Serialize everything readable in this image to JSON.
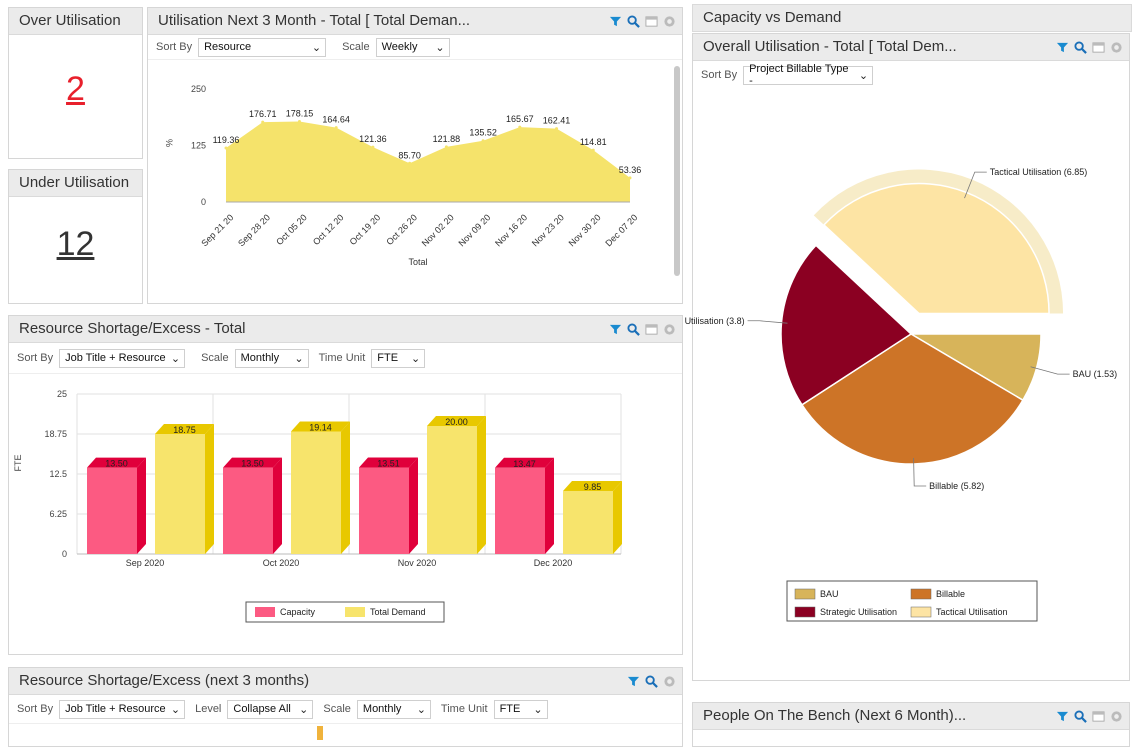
{
  "over_util": {
    "title": "Over Utilisation",
    "value": "2"
  },
  "under_util": {
    "title": "Under Utilisation",
    "value": "12"
  },
  "util_next": {
    "title": "Utilisation Next 3 Month - Total [ Total Deman...",
    "sort_label": "Sort By",
    "sort_value": "Resource",
    "scale_label": "Scale",
    "scale_value": "Weekly"
  },
  "capacity_header": {
    "title": "Capacity vs Demand"
  },
  "overall": {
    "title": "Overall Utilisation - Total [ Total Dem...",
    "sort_label": "Sort By",
    "sort_value": "Project Billable Type -"
  },
  "shortage": {
    "title": "Resource Shortage/Excess - Total",
    "sort_label": "Sort By",
    "sort_value": "Job Title + Resource",
    "scale_label": "Scale",
    "scale_value": "Monthly",
    "unit_label": "Time Unit",
    "unit_value": "FTE"
  },
  "shortage3": {
    "title": "Resource Shortage/Excess (next 3 months)",
    "sort_label": "Sort By",
    "sort_value": "Job Title + Resource",
    "level_label": "Level",
    "level_value": "Collapse All",
    "scale_label": "Scale",
    "scale_value": "Monthly",
    "unit_label": "Time Unit",
    "unit_value": "FTE"
  },
  "bench": {
    "title": "People On The Bench (Next 6 Month)..."
  },
  "colors": {
    "area": "#f5e36b",
    "capacity": "#fc5a82",
    "capacity_side": "#e0003b",
    "demand": "#f7e46c",
    "demand_side": "#e8c800",
    "bau": "#d7b45a",
    "billable": "#cd7427",
    "strategic": "#8b0022",
    "tactical": "#fde4a4",
    "kpi_red": "#e8202c"
  },
  "chart_data": [
    {
      "type": "area",
      "x": [
        "Sep 21 20",
        "Sep 28 20",
        "Oct 05 20",
        "Oct 12 20",
        "Oct 19 20",
        "Oct 26 20",
        "Nov 02 20",
        "Nov 09 20",
        "Nov 16 20",
        "Nov 23 20",
        "Nov 30 20",
        "Dec 07 20"
      ],
      "series": [
        {
          "values": [
            119.36,
            176.71,
            178.15,
            164.64,
            121.36,
            85.7,
            121.88,
            135.52,
            165.67,
            162.41,
            114.81,
            53.36
          ]
        }
      ],
      "data_labels": [
        "119.36",
        "176.71",
        "178.15",
        "164.64",
        "121.36",
        "85.70",
        "121.88",
        "135.52",
        "165.67",
        "162.41",
        "114.81",
        "53.36"
      ],
      "xlabel": "Total",
      "ylabel": "%",
      "ylim": [
        0,
        250
      ],
      "yticks": [
        "0",
        "125",
        "250"
      ],
      "grid": false
    },
    {
      "type": "bar",
      "categories": [
        "Sep 2020",
        "Oct 2020",
        "Nov 2020",
        "Dec 2020"
      ],
      "series": [
        {
          "name": "Capacity",
          "values": [
            13.5,
            13.5,
            13.51,
            13.47
          ],
          "labels": [
            "13.50",
            "13.50",
            "13.51",
            "13.47"
          ]
        },
        {
          "name": "Total Demand",
          "values": [
            18.75,
            19.14,
            20.0,
            9.85
          ],
          "labels": [
            "18.75",
            "19.14",
            "20.00",
            "9.85"
          ]
        }
      ],
      "ylabel": "FTE",
      "ylim": [
        0,
        25
      ],
      "yticks": [
        "0",
        "6.25",
        "12.5",
        "18.75",
        "25"
      ],
      "grid": true,
      "legend": "bottom"
    },
    {
      "type": "pie",
      "slices": [
        {
          "name": "BAU",
          "value": 1.53,
          "label": "BAU (1.53)"
        },
        {
          "name": "Billable",
          "value": 5.82,
          "label": "Billable (5.82)"
        },
        {
          "name": "Strategic Utilisation",
          "value": 3.8,
          "label": "Utilisation (3.8)"
        },
        {
          "name": "Tactical Utilisation",
          "value": 6.85,
          "label": "Tactical Utilisation (6.85)"
        }
      ],
      "legend": "bottom"
    }
  ]
}
